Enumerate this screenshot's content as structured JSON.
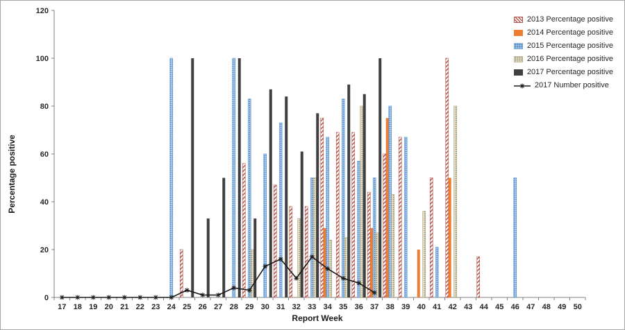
{
  "chart_data": {
    "type": "bar",
    "title": "",
    "x_label": "Report Week",
    "y_label": "Percentage positive",
    "ylim": [
      0,
      120
    ],
    "yticks": [
      0,
      20,
      40,
      60,
      80,
      100,
      120
    ],
    "grid": false,
    "legend_position": "top-right",
    "weeks": [
      17,
      18,
      19,
      20,
      21,
      22,
      23,
      24,
      25,
      26,
      27,
      28,
      29,
      30,
      31,
      32,
      33,
      34,
      35,
      36,
      37,
      38,
      39,
      40,
      41,
      42,
      43,
      44,
      45,
      46,
      47,
      48,
      49,
      50
    ],
    "series": [
      {
        "name": "2013 Percentage positive",
        "style": "hatch-red",
        "color": "#b4564e",
        "values": {
          "25": 20,
          "29": 56,
          "31": 47,
          "32": 38,
          "33": 38,
          "34": 75,
          "35": 69,
          "36": 69,
          "37": 44,
          "38": 60,
          "39": 67,
          "41": 50,
          "42": 100,
          "44": 17
        }
      },
      {
        "name": "2014 Percentage positive",
        "style": "solid-orange",
        "color": "#ed7d31",
        "values": {
          "34": 29,
          "37": 29,
          "38": 75,
          "40": 20,
          "42": 50
        }
      },
      {
        "name": "2015 Percentage positive",
        "style": "dot-blue",
        "color": "#5b9bd5",
        "values": {
          "24": 100,
          "28": 100,
          "29": 83,
          "30": 60,
          "31": 73,
          "33": 50,
          "34": 67,
          "35": 83,
          "36": 57,
          "37": 50,
          "38": 80,
          "39": 67,
          "41": 21,
          "46": 50
        }
      },
      {
        "name": "2016 Percentage positive",
        "style": "dot-tan",
        "color": "#bdb694",
        "values": {
          "29": 20,
          "32": 33,
          "33": 50,
          "34": 24,
          "35": 25,
          "36": 80,
          "37": 27,
          "38": 43,
          "40": 36,
          "42": 80
        }
      },
      {
        "name": "2017 Percentage positive",
        "style": "solid-dark",
        "color": "#404040",
        "values": {
          "25": 100,
          "26": 33,
          "27": 50,
          "28": 100,
          "29": 33,
          "30": 87,
          "31": 84,
          "32": 61,
          "33": 77,
          "35": 89,
          "36": 85,
          "37": 100
        }
      }
    ],
    "line_series": {
      "name": "2017 Number positive",
      "color": "#1a1a1a",
      "values": {
        "17": 0,
        "18": 0,
        "19": 0,
        "20": 0,
        "21": 0,
        "22": 0,
        "23": 0,
        "24": 0,
        "25": 3,
        "26": 1,
        "27": 1,
        "28": 4,
        "29": 3,
        "30": 13,
        "31": 16,
        "32": 8,
        "33": 17,
        "34": 12,
        "35": 8,
        "36": 6,
        "37": 2
      }
    }
  }
}
